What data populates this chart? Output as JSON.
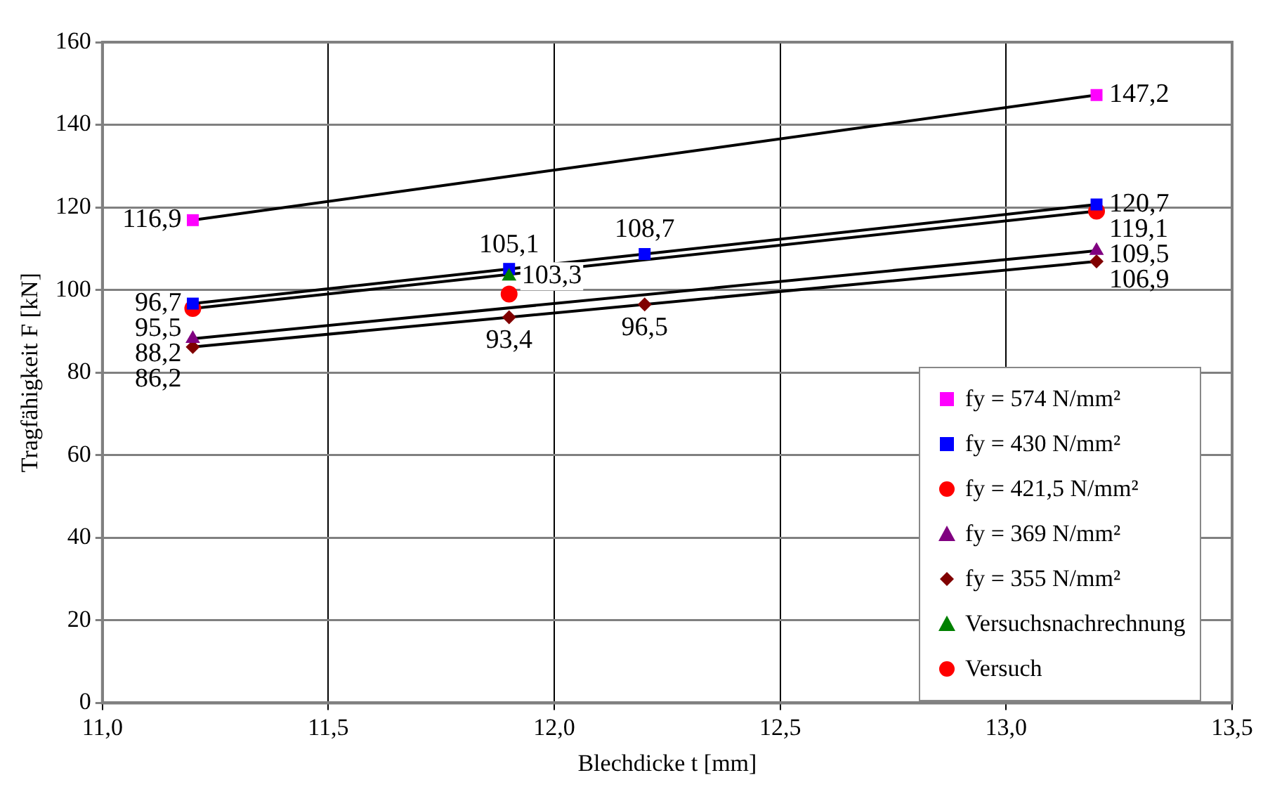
{
  "chart_data": {
    "type": "line",
    "xlabel": "Blechdicke t [mm]",
    "ylabel": "Tragfähigkeit F [kN]",
    "xlim": [
      11.0,
      13.5
    ],
    "xticks": [
      {
        "value": 11.0,
        "label": "11,0"
      },
      {
        "value": 11.5,
        "label": "11,5"
      },
      {
        "value": 12.0,
        "label": "12,0"
      },
      {
        "value": 12.5,
        "label": "12,5"
      },
      {
        "value": 13.0,
        "label": "13,0"
      },
      {
        "value": 13.5,
        "label": "13,5"
      }
    ],
    "ylim": [
      0,
      160
    ],
    "yticks": [
      0,
      20,
      40,
      60,
      80,
      100,
      120,
      140,
      160
    ],
    "grid": true,
    "legend": "bottom right",
    "series": [
      {
        "name": "fy = 574 N/mm²",
        "type": "line",
        "marker": "square",
        "color": "#ff00ff",
        "x": [
          11.2,
          13.2
        ],
        "values": [
          116.9,
          147.2
        ],
        "value_labels": [
          "116,9",
          "147,2"
        ]
      },
      {
        "name": "fy = 430 N/mm²",
        "type": "line",
        "marker": "square",
        "color": "#0000ff",
        "x": [
          11.2,
          11.9,
          12.2,
          13.2
        ],
        "values": [
          96.7,
          105.1,
          108.7,
          120.7
        ],
        "value_labels": [
          "96,7",
          "105,1",
          "108,7",
          "120,7"
        ]
      },
      {
        "name": "fy = 421,5 N/mm²",
        "type": "line",
        "marker": "circle",
        "color": "#ff0000",
        "x": [
          11.2,
          13.2
        ],
        "values": [
          95.5,
          119.1
        ],
        "value_labels": [
          "95,5",
          "119,1"
        ]
      },
      {
        "name": "fy = 369 N/mm²",
        "type": "line",
        "marker": "triangle",
        "color": "#800080",
        "x": [
          11.2,
          13.2
        ],
        "values": [
          88.2,
          109.5
        ],
        "value_labels": [
          "88,2",
          "109,5"
        ]
      },
      {
        "name": "fy = 355 N/mm²",
        "type": "line",
        "marker": "diamond",
        "color": "#800000",
        "x": [
          11.2,
          11.9,
          12.2,
          13.2
        ],
        "values": [
          86.2,
          93.4,
          96.5,
          106.9
        ],
        "value_labels": [
          "86,2",
          "93,4",
          "96,5",
          "106,9"
        ]
      },
      {
        "name": "Versuchsnachrechnung",
        "type": "scatter",
        "marker": "triangle",
        "color": "#008000",
        "x": [
          11.9
        ],
        "values": [
          103.3
        ],
        "value_labels": [
          "103,3"
        ]
      },
      {
        "name": "Versuch",
        "type": "scatter",
        "marker": "circle",
        "color": "#ff0000",
        "x": [
          11.9
        ],
        "values": [
          99.0
        ]
      }
    ]
  }
}
